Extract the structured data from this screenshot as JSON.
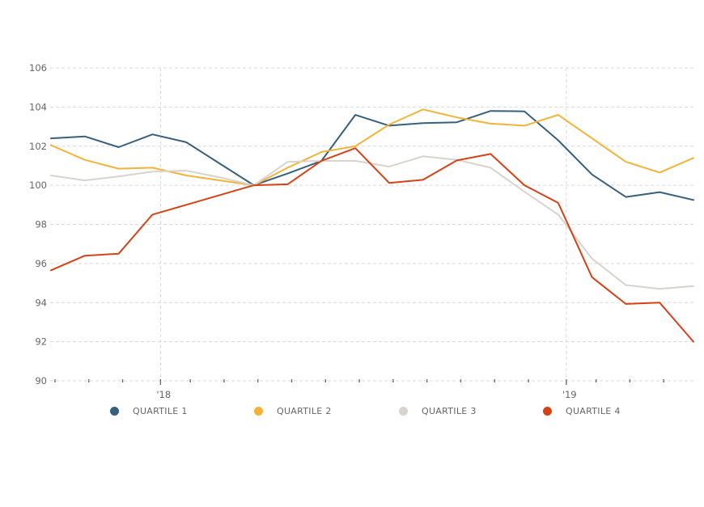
{
  "chart_data": {
    "type": "line",
    "title": "",
    "xlabel": "",
    "ylabel": "",
    "ylim": [
      90,
      106
    ],
    "yticks": [
      90,
      92,
      94,
      96,
      98,
      100,
      102,
      104,
      106
    ],
    "ytick_labels": [
      "90",
      "92",
      "94",
      "96",
      "98",
      "100",
      "102",
      "104",
      "106"
    ],
    "x": [
      "2017-10",
      "2017-11",
      "2017-12",
      "2018-01",
      "2018-02",
      "2018-03",
      "2018-04",
      "2018-05",
      "2018-06",
      "2018-07",
      "2018-08",
      "2018-09",
      "2018-10",
      "2018-11",
      "2018-12",
      "2019-01",
      "2019-02",
      "2019-03",
      "2019-04",
      "2019-05"
    ],
    "xtick_labels": [
      {
        "month": "2018-01",
        "label": "'18"
      },
      {
        "month": "2019-01",
        "label": "'19"
      }
    ],
    "minor_ticks": [
      "2017-10",
      "2017-11",
      "2017-12",
      "2018-01",
      "2018-02",
      "2018-03",
      "2018-04",
      "2018-05",
      "2018-06",
      "2018-07",
      "2018-08",
      "2018-09",
      "2018-10",
      "2018-11",
      "2018-12",
      "2019-01",
      "2019-02",
      "2019-03",
      "2019-04"
    ],
    "grid": true,
    "legend_position": "bottom",
    "series": [
      {
        "name": "QUARTILE 1",
        "color": "#35607f",
        "values": [
          102.4,
          102.5,
          101.95,
          102.6,
          102.2,
          101.1,
          100.0,
          100.6,
          101.25,
          103.6,
          103.05,
          103.18,
          103.22,
          103.8,
          103.78,
          102.3,
          100.55,
          99.4,
          99.65,
          99.25
        ]
      },
      {
        "name": "QUARTILE 2",
        "color": "#f5b335",
        "values": [
          102.05,
          101.3,
          100.85,
          100.9,
          100.5,
          100.25,
          100.0,
          100.9,
          101.7,
          102.0,
          103.1,
          103.88,
          103.47,
          103.15,
          103.05,
          103.6,
          102.4,
          101.2,
          100.65,
          101.4
        ]
      },
      {
        "name": "QUARTILE 3",
        "color": "#d8d3cc",
        "values": [
          100.5,
          100.25,
          100.45,
          100.7,
          100.75,
          100.4,
          100.0,
          101.2,
          101.25,
          101.25,
          100.95,
          101.48,
          101.3,
          100.9,
          99.67,
          98.5,
          96.25,
          94.9,
          94.7,
          94.85
        ]
      },
      {
        "name": "QUARTILE 4",
        "color": "#d64215",
        "values": [
          95.65,
          96.4,
          96.5,
          98.5,
          99.0,
          99.5,
          100.0,
          100.05,
          101.25,
          101.9,
          100.12,
          100.28,
          101.27,
          101.6,
          100.0,
          99.1,
          95.3,
          93.93,
          94.0,
          92.0
        ]
      }
    ]
  },
  "legend": {
    "items": [
      {
        "label": "QUARTILE 1",
        "color": "#35607f"
      },
      {
        "label": "QUARTILE 2",
        "color": "#f5b335"
      },
      {
        "label": "QUARTILE 3",
        "color": "#d8d3cc"
      },
      {
        "label": "QUARTILE 4",
        "color": "#d64215"
      }
    ]
  }
}
